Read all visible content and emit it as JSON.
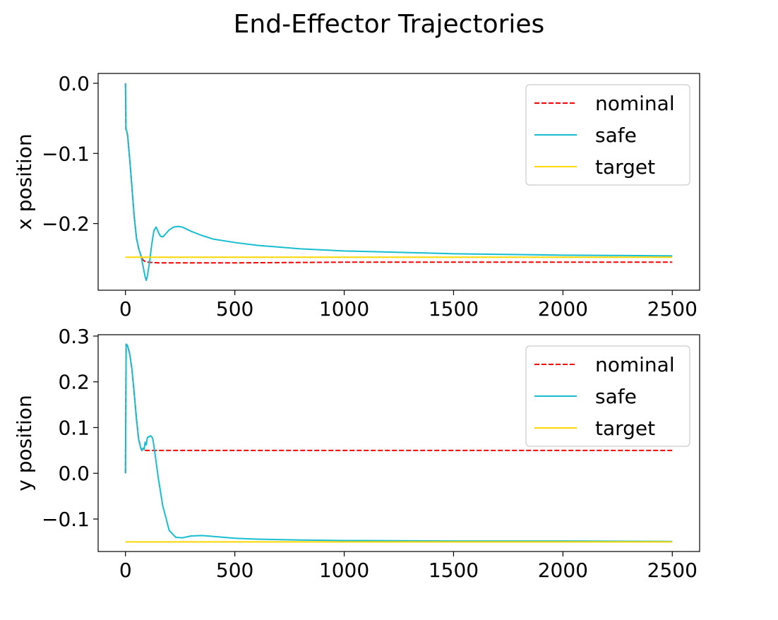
{
  "figure": {
    "title": "End-Effector Trajectories"
  },
  "chart_data": [
    {
      "type": "line",
      "title": "",
      "xlabel": "",
      "ylabel": "x position",
      "xlim": [
        -125,
        2625
      ],
      "ylim": [
        -0.295,
        0.014
      ],
      "xticks": [
        0,
        500,
        1000,
        1500,
        2000,
        2500
      ],
      "xtick_labels": [
        "0",
        "500",
        "1000",
        "1500",
        "2000",
        "2500"
      ],
      "yticks": [
        0.0,
        -0.1,
        -0.2
      ],
      "ytick_labels": [
        "0.0",
        "−0.1",
        "−0.2"
      ],
      "grid": false,
      "legend": "top-right",
      "series": [
        {
          "name": "nominal",
          "color": "#ff0000",
          "dash": "dashed",
          "x": [
            0,
            1,
            2,
            5,
            10,
            20,
            30,
            40,
            50,
            60,
            70,
            80,
            90,
            100,
            150,
            300,
            500,
            1000,
            1500,
            2000,
            2500
          ],
          "y": [
            0.0,
            -0.02,
            -0.066,
            -0.067,
            -0.075,
            -0.11,
            -0.15,
            -0.19,
            -0.22,
            -0.235,
            -0.245,
            -0.252,
            -0.254,
            -0.255,
            -0.256,
            -0.256,
            -0.256,
            -0.255,
            -0.255,
            -0.255,
            -0.255
          ]
        },
        {
          "name": "safe",
          "color": "#17becf",
          "dash": "solid",
          "x": [
            0,
            1,
            2,
            5,
            10,
            20,
            30,
            40,
            50,
            60,
            70,
            80,
            90,
            95,
            100,
            110,
            120,
            130,
            140,
            150,
            160,
            170,
            180,
            200,
            220,
            240,
            260,
            280,
            300,
            350,
            400,
            500,
            600,
            800,
            1000,
            1500,
            2000,
            2500
          ],
          "y": [
            0.0,
            -0.02,
            -0.066,
            -0.067,
            -0.075,
            -0.11,
            -0.15,
            -0.19,
            -0.22,
            -0.235,
            -0.245,
            -0.26,
            -0.276,
            -0.281,
            -0.275,
            -0.255,
            -0.23,
            -0.21,
            -0.205,
            -0.212,
            -0.218,
            -0.219,
            -0.216,
            -0.209,
            -0.205,
            -0.204,
            -0.205,
            -0.208,
            -0.211,
            -0.217,
            -0.222,
            -0.227,
            -0.231,
            -0.236,
            -0.239,
            -0.243,
            -0.245,
            -0.246
          ]
        },
        {
          "name": "target",
          "color": "#ffd700",
          "dash": "solid",
          "x": [
            0,
            2500
          ],
          "y": [
            -0.248,
            -0.248
          ]
        }
      ]
    },
    {
      "type": "line",
      "title": "",
      "xlabel": "",
      "ylabel": "y position",
      "xlim": [
        -125,
        2625
      ],
      "ylim": [
        -0.171,
        0.303
      ],
      "xticks": [
        0,
        500,
        1000,
        1500,
        2000,
        2500
      ],
      "xtick_labels": [
        "0",
        "500",
        "1000",
        "1500",
        "2000",
        "2500"
      ],
      "yticks": [
        0.3,
        0.2,
        0.1,
        0.0,
        -0.1
      ],
      "ytick_labels": [
        "0.3",
        "0.2",
        "0.1",
        "0.0",
        "−0.1"
      ],
      "grid": false,
      "legend": "top-right",
      "series": [
        {
          "name": "nominal",
          "color": "#ff0000",
          "dash": "dashed",
          "x": [
            0,
            3,
            5,
            10,
            20,
            30,
            40,
            50,
            60,
            70,
            75,
            80,
            85,
            90,
            95,
            100,
            2500
          ],
          "y": [
            0.0,
            0.282,
            0.282,
            0.278,
            0.26,
            0.225,
            0.175,
            0.12,
            0.075,
            0.055,
            0.05,
            0.05,
            0.05,
            0.05,
            0.05,
            0.05,
            0.05
          ]
        },
        {
          "name": "safe",
          "color": "#17becf",
          "dash": "solid",
          "x": [
            0,
            3,
            5,
            10,
            20,
            30,
            40,
            50,
            60,
            70,
            75,
            80,
            85,
            90,
            95,
            100,
            105,
            110,
            115,
            120,
            125,
            130,
            140,
            150,
            170,
            200,
            230,
            260,
            300,
            350,
            400,
            500,
            600,
            800,
            1000,
            1500,
            2000,
            2500
          ],
          "y": [
            0.0,
            0.282,
            0.282,
            0.278,
            0.26,
            0.225,
            0.175,
            0.12,
            0.075,
            0.055,
            0.05,
            0.055,
            0.052,
            0.068,
            0.062,
            0.078,
            0.08,
            0.08,
            0.082,
            0.08,
            0.075,
            0.06,
            0.025,
            -0.01,
            -0.07,
            -0.125,
            -0.14,
            -0.141,
            -0.137,
            -0.136,
            -0.138,
            -0.142,
            -0.144,
            -0.146,
            -0.147,
            -0.148,
            -0.148,
            -0.149
          ]
        },
        {
          "name": "target",
          "color": "#ffd700",
          "dash": "solid",
          "x": [
            0,
            2500
          ],
          "y": [
            -0.15,
            -0.15
          ]
        }
      ]
    }
  ]
}
